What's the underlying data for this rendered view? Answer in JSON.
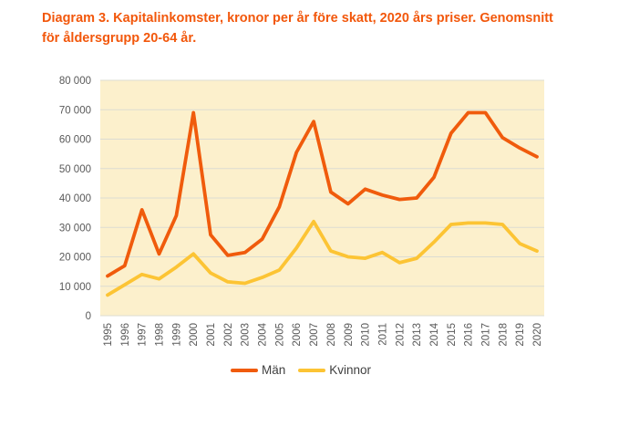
{
  "title": "Diagram 3. Kapitalinkomster, kronor per år före skatt, 2020 års priser. Genomsnitt för åldersgrupp 20-64 år.",
  "colors": {
    "title": "#f2570b",
    "page_background": "#ffffff",
    "plot_background": "#fcf0cc",
    "gridline": "#dcdcd2",
    "tick_label": "#595959",
    "legend_text": "#404040"
  },
  "chart_data": {
    "type": "line",
    "title": "Diagram 3. Kapitalinkomster, kronor per år före skatt, 2020 års priser. Genomsnitt för åldersgrupp 20-64 år.",
    "xlabel": "",
    "ylabel": "",
    "x": [
      1995,
      1996,
      1997,
      1998,
      1999,
      2000,
      2001,
      2002,
      2003,
      2004,
      2005,
      2006,
      2007,
      2008,
      2009,
      2010,
      2011,
      2012,
      2013,
      2014,
      2015,
      2016,
      2017,
      2018,
      2019,
      2020
    ],
    "series": [
      {
        "name": "Män",
        "color": "#f05b0c",
        "values": [
          13500,
          17000,
          36000,
          21000,
          34000,
          69000,
          27500,
          20500,
          21500,
          26000,
          37000,
          55500,
          66000,
          42000,
          38000,
          43000,
          41000,
          39500,
          40000,
          47000,
          62000,
          69000,
          69000,
          60500,
          57000,
          54000
        ]
      },
      {
        "name": "Kvinnor",
        "color": "#fcc434",
        "values": [
          7000,
          10500,
          14000,
          12500,
          16500,
          21000,
          14500,
          11500,
          11000,
          13000,
          15500,
          23000,
          32000,
          22000,
          20000,
          19500,
          21500,
          18000,
          19500,
          25000,
          31000,
          31500,
          31500,
          31000,
          24500,
          22000
        ]
      }
    ],
    "ylim": [
      0,
      80000
    ],
    "ytick_step": 10000,
    "ytick_labels": [
      "0",
      "10 000",
      "20 000",
      "30 000",
      "40 000",
      "50 000",
      "60 000",
      "70 000",
      "80 000"
    ],
    "grid": true,
    "legend_position": "bottom"
  },
  "legend": {
    "items": [
      {
        "label": "Män",
        "color": "#f05b0c"
      },
      {
        "label": "Kvinnor",
        "color": "#fcc434"
      }
    ]
  }
}
